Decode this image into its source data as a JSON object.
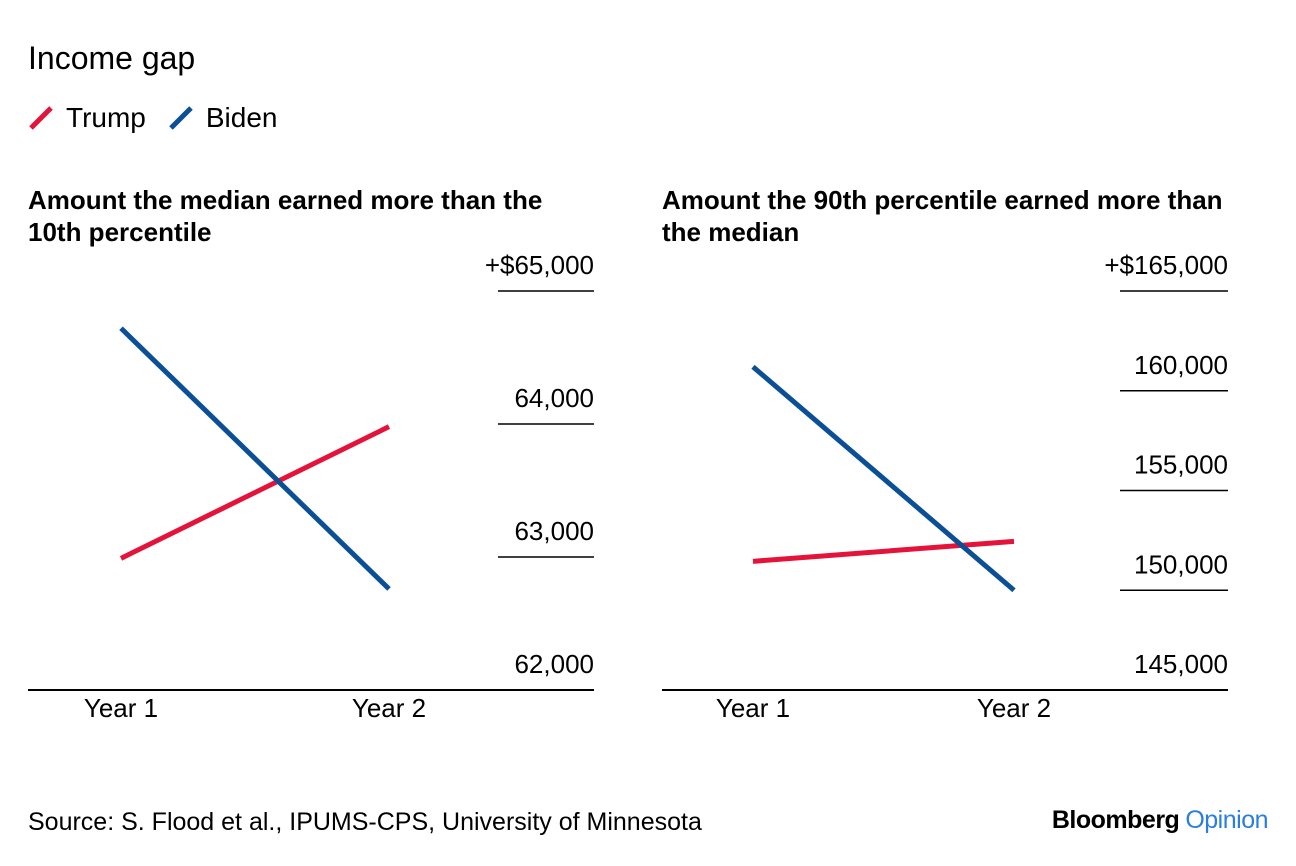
{
  "title": "Income gap",
  "legend": [
    {
      "label": "Trump",
      "color": "#e4133a"
    },
    {
      "label": "Biden",
      "color": "#0b4f96"
    }
  ],
  "source": "Source: S. Flood et al., IPUMS-CPS, University of Minnesota",
  "brand": {
    "main": "Bloomberg",
    "sub": "Opinion"
  },
  "chart_data": [
    {
      "type": "line",
      "title": "Amount the median earned more than the 10th percentile",
      "x": [
        "Year 1",
        "Year 2"
      ],
      "ylim": [
        62000,
        65000
      ],
      "yticks": [
        62000,
        63000,
        64000,
        65000
      ],
      "ytick_labels": [
        "62,000",
        "63,000",
        "64,000",
        "+$65,000"
      ],
      "grid": true,
      "series": [
        {
          "name": "Trump",
          "color": "#e4133a",
          "values": [
            62990,
            63980
          ]
        },
        {
          "name": "Biden",
          "color": "#0b4f96",
          "values": [
            64720,
            62760
          ]
        }
      ]
    },
    {
      "type": "line",
      "title": "Amount the 90th percentile earned more than the median",
      "x": [
        "Year 1",
        "Year 2"
      ],
      "ylim": [
        145000,
        165000
      ],
      "yticks": [
        145000,
        150000,
        155000,
        160000,
        165000
      ],
      "ytick_labels": [
        "145,000",
        "150,000",
        "155,000",
        "160,000",
        "+$165,000"
      ],
      "grid": true,
      "series": [
        {
          "name": "Trump",
          "color": "#e4133a",
          "values": [
            151450,
            152450
          ]
        },
        {
          "name": "Biden",
          "color": "#0b4f96",
          "values": [
            161200,
            150000
          ]
        }
      ]
    }
  ]
}
